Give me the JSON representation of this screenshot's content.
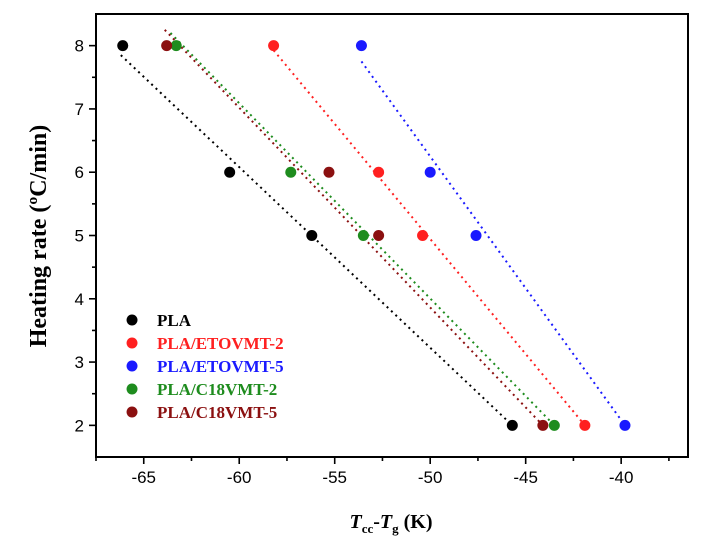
{
  "chart_data": {
    "type": "scatter",
    "xlabel": {
      "main": "T",
      "sub1": "cc",
      "dash": "-",
      "main2": "T",
      "sub2": "g",
      "unit": " (K)"
    },
    "ylabel": "Heating rate (ºC/min)",
    "xlim": [
      -67.5,
      -36.5
    ],
    "ylim": [
      1.5,
      8.5
    ],
    "xticks": [
      -65,
      -60,
      -55,
      -50,
      -45,
      -40
    ],
    "yticks": [
      2,
      3,
      4,
      5,
      6,
      7,
      8
    ],
    "legend_position": "bottom-left",
    "series": [
      {
        "name": "PLA",
        "color": "#000000",
        "x": [
          -66.1,
          -60.5,
          -56.2,
          -45.7
        ],
        "y": [
          8,
          6,
          5,
          2
        ],
        "fit": [
          [
            -66.2,
            7.85
          ],
          [
            -45.7,
            2.0
          ]
        ]
      },
      {
        "name": "PLA/ETOVMT-2",
        "color": "#ff2020",
        "x": [
          -58.2,
          -52.7,
          -50.4,
          -41.9
        ],
        "y": [
          8,
          6,
          5,
          2
        ],
        "fit": [
          [
            -58.4,
            8.0
          ],
          [
            -41.9,
            2.0
          ]
        ]
      },
      {
        "name": "PLA/ETOVMT-5",
        "color": "#1a1aff",
        "x": [
          -53.6,
          -50.0,
          -47.6,
          -39.8
        ],
        "y": [
          8,
          6,
          5,
          2
        ],
        "fit": [
          [
            -53.6,
            7.75
          ],
          [
            -39.8,
            2.0
          ]
        ]
      },
      {
        "name": "PLA/C18VMT-2",
        "color": "#1e8c1e",
        "x": [
          -63.3,
          -57.3,
          -53.5,
          -43.5
        ],
        "y": [
          8,
          6,
          5,
          2
        ],
        "fit": [
          [
            -63.6,
            8.2
          ],
          [
            -43.5,
            2.0
          ]
        ]
      },
      {
        "name": "PLA/C18VMT-5",
        "color": "#8b1010",
        "x": [
          -63.8,
          -55.3,
          -52.7,
          -44.1
        ],
        "y": [
          8,
          6,
          5,
          2
        ],
        "fit": [
          [
            -63.9,
            8.25
          ],
          [
            -44.1,
            2.0
          ]
        ]
      }
    ]
  }
}
